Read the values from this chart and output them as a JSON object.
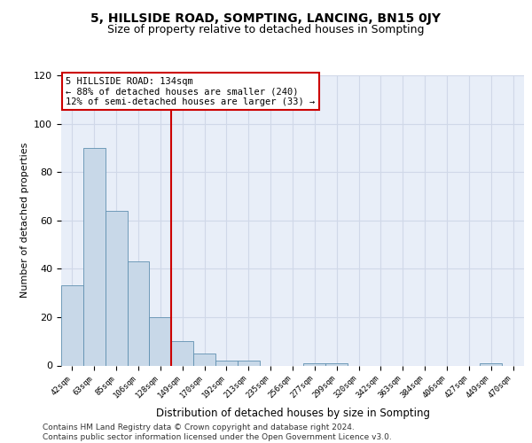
{
  "title": "5, HILLSIDE ROAD, SOMPTING, LANCING, BN15 0JY",
  "subtitle": "Size of property relative to detached houses in Sompting",
  "xlabel": "Distribution of detached houses by size in Sompting",
  "ylabel": "Number of detached properties",
  "categories": [
    "42sqm",
    "63sqm",
    "85sqm",
    "106sqm",
    "128sqm",
    "149sqm",
    "170sqm",
    "192sqm",
    "213sqm",
    "235sqm",
    "256sqm",
    "277sqm",
    "299sqm",
    "320sqm",
    "342sqm",
    "363sqm",
    "384sqm",
    "406sqm",
    "427sqm",
    "449sqm",
    "470sqm"
  ],
  "values": [
    33,
    90,
    64,
    43,
    20,
    10,
    5,
    2,
    2,
    0,
    0,
    1,
    1,
    0,
    0,
    0,
    0,
    0,
    0,
    1,
    0
  ],
  "bar_color": "#c8d8e8",
  "bar_edge_color": "#6090b0",
  "vline_x": 4.5,
  "vline_color": "#cc0000",
  "annotation_line1": "5 HILLSIDE ROAD: 134sqm",
  "annotation_line2": "← 88% of detached houses are smaller (240)",
  "annotation_line3": "12% of semi-detached houses are larger (33) →",
  "annotation_box_color": "#ffffff",
  "annotation_box_edge_color": "#cc0000",
  "ylim": [
    0,
    120
  ],
  "yticks": [
    0,
    20,
    40,
    60,
    80,
    100,
    120
  ],
  "grid_color": "#d0d8e8",
  "bg_color": "#e8eef8",
  "footer_text": "Contains HM Land Registry data © Crown copyright and database right 2024.\nContains public sector information licensed under the Open Government Licence v3.0.",
  "title_fontsize": 10,
  "subtitle_fontsize": 9,
  "annotation_fontsize": 7.5,
  "footer_fontsize": 6.5,
  "ylabel_fontsize": 8,
  "xlabel_fontsize": 8.5
}
